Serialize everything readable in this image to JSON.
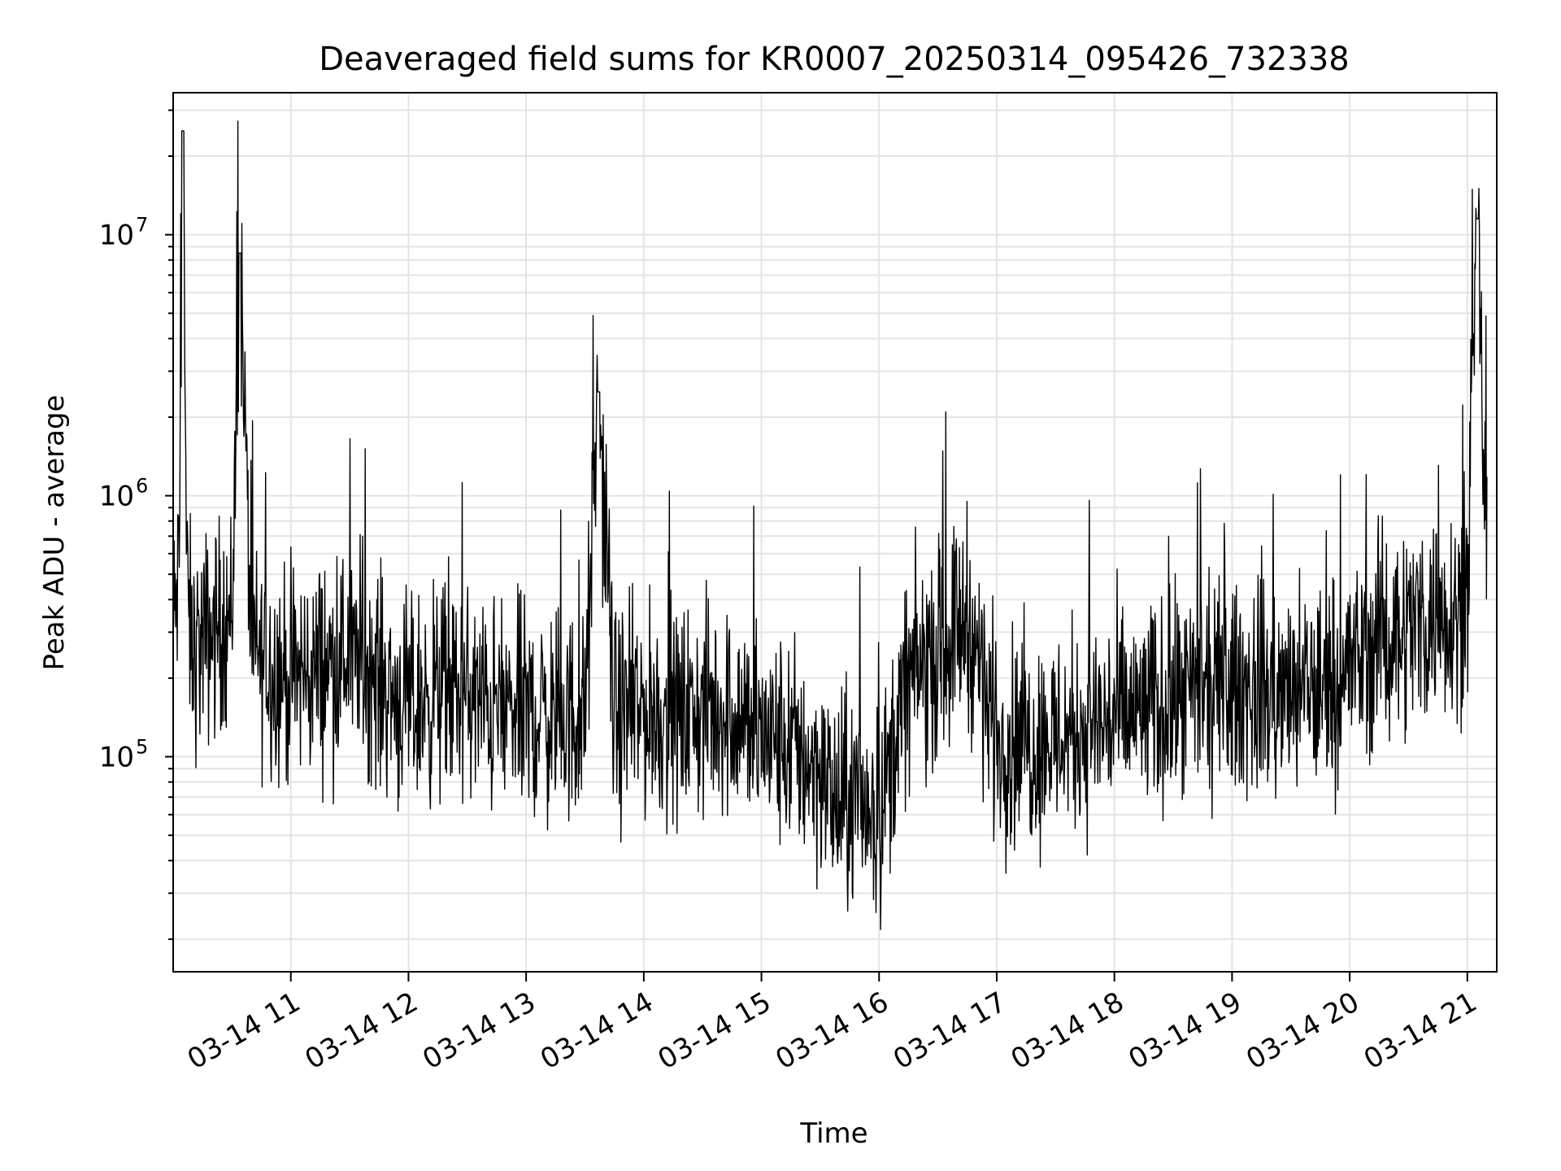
{
  "chart_data": {
    "type": "line",
    "title": "Deaveraged field sums for KR0007_20250314_095426_732338",
    "xlabel": "Time",
    "ylabel": "Peak ADU - average",
    "yscale": "log",
    "xlim": [
      "2025-03-14 10:00",
      "2025-03-14 21:15"
    ],
    "ylim": [
      15000,
      35000000
    ],
    "grid": true,
    "line_color": "#000000",
    "x_ticks": [
      "03-14 11",
      "03-14 12",
      "03-14 13",
      "03-14 14",
      "03-14 15",
      "03-14 16",
      "03-14 17",
      "03-14 18",
      "03-14 19",
      "03-14 20",
      "03-14 21"
    ],
    "y_ticks": [
      {
        "base": "10",
        "exp": "5",
        "value": 100000
      },
      {
        "base": "10",
        "exp": "6",
        "value": 1000000
      },
      {
        "base": "10",
        "exp": "7",
        "value": 10000000
      }
    ],
    "series": [
      {
        "x": [
          "2025-03-14 10:00",
          "2025-03-14 10:03",
          "2025-03-14 10:05",
          "2025-03-14 10:07",
          "2025-03-14 10:10",
          "2025-03-14 10:20",
          "2025-03-14 10:30",
          "2025-03-14 10:34",
          "2025-03-14 10:40",
          "2025-03-14 10:50",
          "2025-03-14 11:00",
          "2025-03-14 11:15",
          "2025-03-14 11:30",
          "2025-03-14 11:45",
          "2025-03-14 12:00",
          "2025-03-14 12:15",
          "2025-03-14 12:30",
          "2025-03-14 12:45",
          "2025-03-14 13:00",
          "2025-03-14 13:15",
          "2025-03-14 13:30",
          "2025-03-14 13:37",
          "2025-03-14 13:45",
          "2025-03-14 14:00",
          "2025-03-14 14:15",
          "2025-03-14 14:30",
          "2025-03-14 14:45",
          "2025-03-14 15:00",
          "2025-03-14 15:15",
          "2025-03-14 15:30",
          "2025-03-14 15:40",
          "2025-03-14 15:50",
          "2025-03-14 16:00",
          "2025-03-14 16:15",
          "2025-03-14 16:30",
          "2025-03-14 16:45",
          "2025-03-14 17:00",
          "2025-03-14 17:15",
          "2025-03-14 17:30",
          "2025-03-14 17:45",
          "2025-03-14 18:00",
          "2025-03-14 18:15",
          "2025-03-14 18:30",
          "2025-03-14 18:45",
          "2025-03-14 19:00",
          "2025-03-14 19:15",
          "2025-03-14 19:30",
          "2025-03-14 19:45",
          "2025-03-14 20:00",
          "2025-03-14 20:15",
          "2025-03-14 20:30",
          "2025-03-14 20:45",
          "2025-03-14 21:00",
          "2025-03-14 21:05",
          "2025-03-14 21:10"
        ],
        "y": [
          300000,
          500000,
          25000000,
          400000,
          250000,
          300000,
          350000,
          8500000,
          250000,
          220000,
          200000,
          220000,
          250000,
          200000,
          150000,
          180000,
          170000,
          150000,
          150000,
          140000,
          140000,
          2500000,
          140000,
          150000,
          140000,
          150000,
          150000,
          120000,
          110000,
          90000,
          60000,
          70000,
          60000,
          200000,
          250000,
          350000,
          120000,
          110000,
          120000,
          130000,
          140000,
          150000,
          160000,
          170000,
          180000,
          180000,
          170000,
          180000,
          220000,
          280000,
          320000,
          350000,
          400000,
          11500000,
          500000
        ]
      }
    ]
  }
}
